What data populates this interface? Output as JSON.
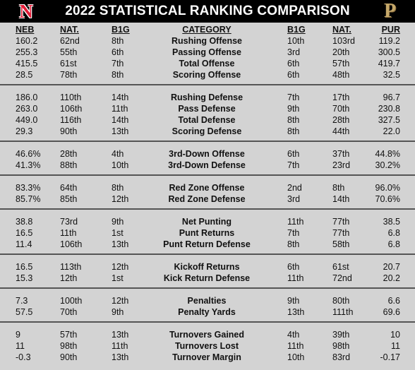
{
  "header": {
    "title": "2022 STATISTICAL RANKING COMPARISON",
    "left_logo": {
      "icon": "nebraska-n-logo-icon",
      "text": "N",
      "color": "#e41c38"
    },
    "right_logo": {
      "icon": "purdue-p-logo-icon",
      "text": "P",
      "color": "#c5a86a"
    }
  },
  "columns": {
    "neb": "NEB",
    "neb_nat": "NAT.",
    "neb_b1g": "B1G",
    "category": "CATEGORY",
    "pur_b1g": "B1G",
    "pur_nat": "NAT.",
    "pur": "PUR"
  },
  "sections": [
    {
      "rows": [
        {
          "neb": "160.2",
          "neb_nat": "62nd",
          "neb_b1g": "8th",
          "category": "Rushing Offense",
          "pur_b1g": "10th",
          "pur_nat": "103rd",
          "pur": "119.2"
        },
        {
          "neb": "255.3",
          "neb_nat": "55th",
          "neb_b1g": "6th",
          "category": "Passing Offense",
          "pur_b1g": "3rd",
          "pur_nat": "20th",
          "pur": "300.5"
        },
        {
          "neb": "415.5",
          "neb_nat": "61st",
          "neb_b1g": "7th",
          "category": "Total Offense",
          "pur_b1g": "6th",
          "pur_nat": "57th",
          "pur": "419.7"
        },
        {
          "neb": "28.5",
          "neb_nat": "78th",
          "neb_b1g": "8th",
          "category": "Scoring Offense",
          "pur_b1g": "6th",
          "pur_nat": "48th",
          "pur": "32.5"
        }
      ]
    },
    {
      "rows": [
        {
          "neb": "186.0",
          "neb_nat": "110th",
          "neb_b1g": "14th",
          "category": "Rushing Defense",
          "pur_b1g": "7th",
          "pur_nat": "17th",
          "pur": "96.7"
        },
        {
          "neb": "263.0",
          "neb_nat": "106th",
          "neb_b1g": "11th",
          "category": "Pass Defense",
          "pur_b1g": "9th",
          "pur_nat": "70th",
          "pur": "230.8"
        },
        {
          "neb": "449.0",
          "neb_nat": "116th",
          "neb_b1g": "14th",
          "category": "Total Defense",
          "pur_b1g": "8th",
          "pur_nat": "28th",
          "pur": "327.5"
        },
        {
          "neb": "29.3",
          "neb_nat": "90th",
          "neb_b1g": "13th",
          "category": "Scoring Defense",
          "pur_b1g": "8th",
          "pur_nat": "44th",
          "pur": "22.0"
        }
      ]
    },
    {
      "rows": [
        {
          "neb": "46.6%",
          "neb_nat": "28th",
          "neb_b1g": "4th",
          "category": "3rd-Down Offense",
          "pur_b1g": "6th",
          "pur_nat": "37th",
          "pur": "44.8%"
        },
        {
          "neb": "41.3%",
          "neb_nat": "88th",
          "neb_b1g": "10th",
          "category": "3rd-Down Defense",
          "pur_b1g": "7th",
          "pur_nat": "23rd",
          "pur": "30.2%"
        }
      ]
    },
    {
      "rows": [
        {
          "neb": "83.3%",
          "neb_nat": "64th",
          "neb_b1g": "8th",
          "category": "Red Zone Offense",
          "pur_b1g": "2nd",
          "pur_nat": "8th",
          "pur": "96.0%"
        },
        {
          "neb": "85.7%",
          "neb_nat": "85th",
          "neb_b1g": "12th",
          "category": "Red Zone Defense",
          "pur_b1g": "3rd",
          "pur_nat": "14th",
          "pur": "70.6%"
        }
      ]
    },
    {
      "rows": [
        {
          "neb": "38.8",
          "neb_nat": "73rd",
          "neb_b1g": "9th",
          "category": "Net Punting",
          "pur_b1g": "11th",
          "pur_nat": "77th",
          "pur": "38.5"
        },
        {
          "neb": "16.5",
          "neb_nat": "11th",
          "neb_b1g": "1st",
          "category": "Punt Returns",
          "pur_b1g": "7th",
          "pur_nat": "77th",
          "pur": "6.8"
        },
        {
          "neb": "11.4",
          "neb_nat": "106th",
          "neb_b1g": "13th",
          "category": "Punt Return Defense",
          "pur_b1g": "8th",
          "pur_nat": "58th",
          "pur": "6.8"
        }
      ]
    },
    {
      "rows": [
        {
          "neb": "16.5",
          "neb_nat": "113th",
          "neb_b1g": "12th",
          "category": "Kickoff Returns",
          "pur_b1g": "6th",
          "pur_nat": "61st",
          "pur": "20.7"
        },
        {
          "neb": "15.3",
          "neb_nat": "12th",
          "neb_b1g": "1st",
          "category": "Kick Return Defense",
          "pur_b1g": "11th",
          "pur_nat": "72nd",
          "pur": "20.2"
        }
      ]
    },
    {
      "rows": [
        {
          "neb": "7.3",
          "neb_nat": "100th",
          "neb_b1g": "12th",
          "category": "Penalties",
          "pur_b1g": "9th",
          "pur_nat": "80th",
          "pur": "6.6"
        },
        {
          "neb": "57.5",
          "neb_nat": "70th",
          "neb_b1g": "9th",
          "category": "Penalty Yards",
          "pur_b1g": "13th",
          "pur_nat": "111th",
          "pur": "69.6"
        }
      ]
    },
    {
      "rows": [
        {
          "neb": "9",
          "neb_nat": "57th",
          "neb_b1g": "13th",
          "category": "Turnovers Gained",
          "pur_b1g": "4th",
          "pur_nat": "39th",
          "pur": "10"
        },
        {
          "neb": "11",
          "neb_nat": "98th",
          "neb_b1g": "11th",
          "category": "Turnovers Lost",
          "pur_b1g": "11th",
          "pur_nat": "98th",
          "pur": "11"
        },
        {
          "neb": "-0.3",
          "neb_nat": "90th",
          "neb_b1g": "13th",
          "category": "Turnover Margin",
          "pur_b1g": "10th",
          "pur_nat": "83rd",
          "pur": "-0.17"
        }
      ]
    }
  ]
}
